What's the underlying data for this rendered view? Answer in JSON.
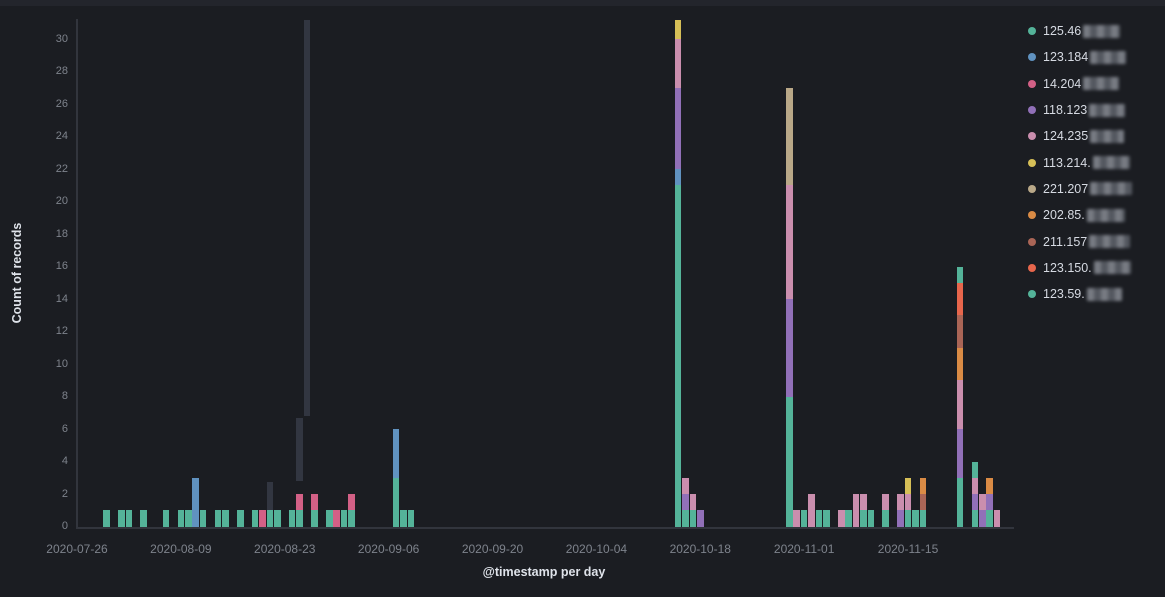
{
  "chart_data": {
    "type": "bar",
    "stacked": true,
    "title": "",
    "xlabel": "@timestamp per day",
    "ylabel": "Count of records",
    "ylim": [
      0,
      31.2
    ],
    "grid": false,
    "legend_position": "right",
    "yticks": [
      0,
      2,
      4,
      6,
      8,
      10,
      12,
      14,
      16,
      18,
      20,
      22,
      24,
      26,
      28,
      30
    ],
    "xticks": [
      "2020-07-26",
      "2020-08-09",
      "2020-08-23",
      "2020-09-06",
      "2020-09-20",
      "2020-10-04",
      "2020-10-18",
      "2020-11-01",
      "2020-11-15"
    ],
    "x_start_date": "2020-07-26",
    "muted_color": "#323641",
    "series": [
      {
        "label": "125.46",
        "color": "#54B399",
        "redacted_width": 37
      },
      {
        "label": "123.184",
        "color": "#6092C0",
        "redacted_width": 36
      },
      {
        "label": "14.204",
        "color": "#D36086",
        "redacted_width": 36
      },
      {
        "label": "118.123",
        "color": "#9170B8",
        "redacted_width": 36
      },
      {
        "label": "124.235",
        "color": "#CA8EAE",
        "redacted_width": 34
      },
      {
        "label": "113.214.",
        "color": "#D6BF57",
        "redacted_width": 37
      },
      {
        "label": "221.207",
        "color": "#B9A888",
        "redacted_width": 42
      },
      {
        "label": "202.85.",
        "color": "#DA8B45",
        "redacted_width": 38
      },
      {
        "label": "211.157",
        "color": "#AA6556",
        "redacted_width": 41
      },
      {
        "label": "123.150.",
        "color": "#E7664C",
        "redacted_width": 37
      },
      {
        "label": "123.59.",
        "color": "#54B399",
        "redacted_width": 35
      }
    ],
    "bars": [
      {
        "date": "2020-07-30",
        "stack": [
          [
            0,
            1
          ]
        ]
      },
      {
        "date": "2020-08-01",
        "stack": [
          [
            0,
            1
          ]
        ]
      },
      {
        "date": "2020-08-02",
        "stack": [
          [
            0,
            1
          ]
        ]
      },
      {
        "date": "2020-08-04",
        "stack": [
          [
            0,
            1
          ]
        ]
      },
      {
        "date": "2020-08-07",
        "stack": [
          [
            0,
            1
          ]
        ]
      },
      {
        "date": "2020-08-09",
        "stack": [
          [
            0,
            1
          ]
        ]
      },
      {
        "date": "2020-08-10",
        "stack": [
          [
            0,
            1
          ]
        ]
      },
      {
        "date": "2020-08-11",
        "stack": [
          [
            1,
            3
          ]
        ]
      },
      {
        "date": "2020-08-12",
        "stack": [
          [
            0,
            1
          ]
        ]
      },
      {
        "date": "2020-08-14",
        "stack": [
          [
            0,
            1
          ]
        ]
      },
      {
        "date": "2020-08-15",
        "stack": [
          [
            0,
            1
          ]
        ]
      },
      {
        "date": "2020-08-17",
        "stack": [
          [
            0,
            1
          ]
        ]
      },
      {
        "date": "2020-08-19",
        "stack": [
          [
            0,
            1
          ]
        ]
      },
      {
        "date": "2020-08-20",
        "stack": [
          [
            2,
            1
          ]
        ]
      },
      {
        "date": "2020-08-21",
        "stack": [
          [
            0,
            1
          ]
        ]
      },
      {
        "date": "2020-08-22",
        "stack": [
          [
            0,
            1
          ]
        ]
      },
      {
        "date": "2020-08-24",
        "stack": [
          [
            0,
            1
          ]
        ]
      },
      {
        "date": "2020-08-25",
        "stack": [
          [
            0,
            1
          ],
          [
            2,
            1
          ]
        ]
      },
      {
        "date": "2020-08-27",
        "stack": [
          [
            0,
            1
          ],
          [
            2,
            1
          ]
        ]
      },
      {
        "date": "2020-08-29",
        "stack": [
          [
            0,
            1
          ]
        ]
      },
      {
        "date": "2020-08-30",
        "stack": [
          [
            2,
            1
          ]
        ]
      },
      {
        "date": "2020-08-31",
        "stack": [
          [
            0,
            1
          ]
        ]
      },
      {
        "date": "2020-09-01",
        "stack": [
          [
            0,
            1
          ],
          [
            2,
            1
          ]
        ]
      },
      {
        "date": "2020-09-07",
        "stack": [
          [
            0,
            3
          ],
          [
            1,
            3
          ]
        ]
      },
      {
        "date": "2020-09-08",
        "stack": [
          [
            0,
            1
          ]
        ]
      },
      {
        "date": "2020-09-09",
        "stack": [
          [
            0,
            1
          ]
        ]
      },
      {
        "date": "2020-10-15",
        "stack": [
          [
            0,
            21
          ],
          [
            1,
            1
          ],
          [
            3,
            5
          ],
          [
            4,
            3
          ],
          [
            5,
            1.2
          ]
        ]
      },
      {
        "date": "2020-10-16",
        "stack": [
          [
            0,
            1
          ],
          [
            3,
            1
          ],
          [
            4,
            1
          ]
        ]
      },
      {
        "date": "2020-10-17",
        "stack": [
          [
            0,
            1
          ],
          [
            4,
            1
          ]
        ]
      },
      {
        "date": "2020-10-18",
        "stack": [
          [
            3,
            1
          ]
        ]
      },
      {
        "date": "2020-10-30",
        "stack": [
          [
            0,
            8
          ],
          [
            3,
            6
          ],
          [
            4,
            7
          ],
          [
            6,
            6
          ]
        ]
      },
      {
        "date": "2020-10-31",
        "stack": [
          [
            4,
            1
          ]
        ]
      },
      {
        "date": "2020-11-01",
        "stack": [
          [
            0,
            1
          ]
        ]
      },
      {
        "date": "2020-11-02",
        "stack": [
          [
            4,
            2
          ]
        ]
      },
      {
        "date": "2020-11-03",
        "stack": [
          [
            0,
            1
          ]
        ]
      },
      {
        "date": "2020-11-04",
        "stack": [
          [
            0,
            1
          ]
        ]
      },
      {
        "date": "2020-11-06",
        "stack": [
          [
            4,
            1
          ]
        ]
      },
      {
        "date": "2020-11-07",
        "stack": [
          [
            0,
            1
          ]
        ]
      },
      {
        "date": "2020-11-08",
        "stack": [
          [
            4,
            2
          ]
        ]
      },
      {
        "date": "2020-11-09",
        "stack": [
          [
            0,
            1
          ],
          [
            4,
            1
          ]
        ]
      },
      {
        "date": "2020-11-10",
        "stack": [
          [
            0,
            1
          ]
        ]
      },
      {
        "date": "2020-11-12",
        "stack": [
          [
            0,
            1
          ],
          [
            4,
            1
          ]
        ]
      },
      {
        "date": "2020-11-14",
        "stack": [
          [
            3,
            1
          ],
          [
            4,
            1
          ]
        ]
      },
      {
        "date": "2020-11-15",
        "stack": [
          [
            0,
            1
          ],
          [
            4,
            1
          ],
          [
            5,
            1
          ]
        ]
      },
      {
        "date": "2020-11-16",
        "stack": [
          [
            0,
            1
          ]
        ]
      },
      {
        "date": "2020-11-17",
        "stack": [
          [
            0,
            1
          ],
          [
            8,
            1
          ],
          [
            7,
            1
          ]
        ]
      },
      {
        "date": "2020-11-22",
        "stack": [
          [
            0,
            3
          ],
          [
            3,
            3
          ],
          [
            4,
            3
          ],
          [
            7,
            2
          ],
          [
            8,
            2
          ],
          [
            9,
            2
          ],
          [
            10,
            1
          ]
        ]
      },
      {
        "date": "2020-11-24",
        "stack": [
          [
            0,
            1
          ],
          [
            3,
            1
          ],
          [
            4,
            1
          ],
          [
            10,
            1
          ]
        ]
      },
      {
        "date": "2020-11-25",
        "stack": [
          [
            3,
            1
          ],
          [
            4,
            1
          ]
        ]
      },
      {
        "date": "2020-11-26",
        "stack": [
          [
            0,
            1
          ],
          [
            3,
            1
          ],
          [
            7,
            1
          ]
        ]
      },
      {
        "date": "2020-11-27",
        "stack": [
          [
            4,
            1
          ]
        ]
      }
    ],
    "muted_bars": [
      {
        "date": "2020-08-21",
        "from": 1,
        "to": 2.75
      },
      {
        "date": "2020-08-25",
        "from": 2.8,
        "to": 6.65
      },
      {
        "date": "2020-08-26",
        "from": 6.8,
        "to": 31.2
      }
    ]
  }
}
